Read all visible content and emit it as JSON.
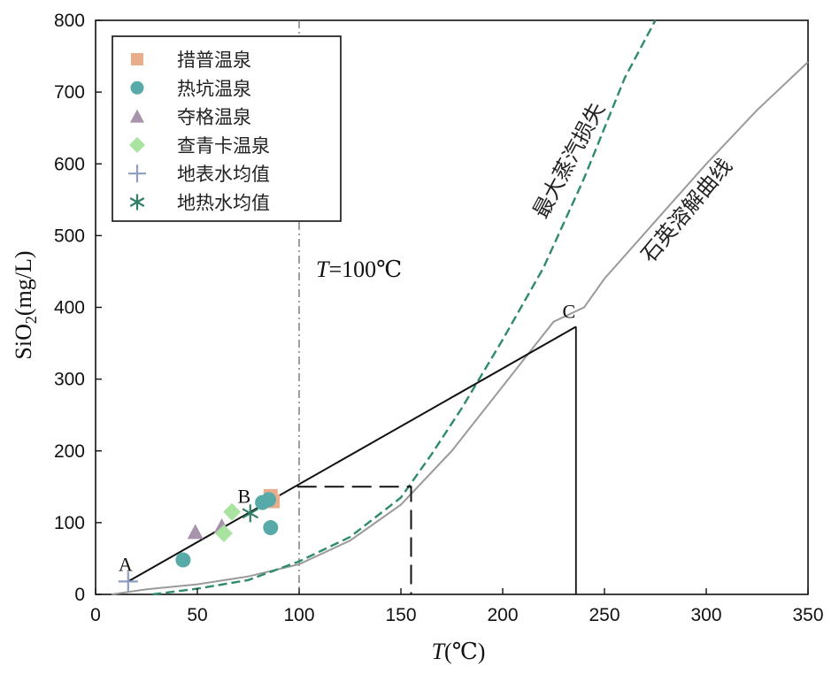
{
  "chart_data": {
    "type": "scatter",
    "xlabel_italic": "T",
    "xlabel_rest": "(℃)",
    "ylabel_main": "SiO",
    "ylabel_sub": "2",
    "ylabel_rest": "(mg/L)",
    "xlim": [
      0,
      350
    ],
    "ylim": [
      0,
      800
    ],
    "x_ticks": [
      0,
      50,
      100,
      150,
      200,
      250,
      300,
      350
    ],
    "y_ticks": [
      0,
      100,
      200,
      300,
      400,
      500,
      600,
      700,
      800
    ],
    "grid": false,
    "legend_position": "top-left",
    "series": [
      {
        "name": "措普温泉",
        "marker": "square",
        "color": "#E8AE8C",
        "points": [
          [
            86,
            137
          ],
          [
            87,
            130
          ]
        ]
      },
      {
        "name": "热坑温泉",
        "marker": "circle",
        "color": "#58AAA8",
        "points": [
          [
            43,
            48
          ],
          [
            82,
            128
          ],
          [
            85,
            132
          ],
          [
            86,
            93
          ]
        ]
      },
      {
        "name": "夺格温泉",
        "marker": "triangle",
        "color": "#A893AC",
        "points": [
          [
            49,
            87
          ],
          [
            62,
            95
          ]
        ]
      },
      {
        "name": "查青卡温泉",
        "marker": "diamond",
        "color": "#A8E4A0",
        "points": [
          [
            63,
            85
          ],
          [
            67,
            115
          ]
        ]
      },
      {
        "name": "地表水均值",
        "marker": "plus",
        "color": "#8E9CC0",
        "points": [
          [
            16,
            18
          ]
        ]
      },
      {
        "name": "地热水均值",
        "marker": "asterisk",
        "color": "#2E7D66",
        "points": [
          [
            76,
            113
          ]
        ]
      }
    ],
    "mixing_line": {
      "color": "#111111",
      "points": [
        [
          16,
          18
        ],
        [
          236,
          373
        ]
      ]
    },
    "c_drop_line": {
      "color": "#111111",
      "points": [
        [
          236,
          373
        ],
        [
          236,
          0
        ]
      ]
    },
    "dashed_box": {
      "color": "#111111",
      "points": [
        [
          99,
          150
        ],
        [
          155,
          150
        ],
        [
          155,
          0
        ]
      ]
    },
    "quartz_curve": {
      "label": "石英溶解曲线",
      "color": "#9A9A9A",
      "points": [
        [
          8,
          0
        ],
        [
          25,
          7
        ],
        [
          50,
          14
        ],
        [
          75,
          25
        ],
        [
          100,
          42
        ],
        [
          125,
          75
        ],
        [
          150,
          125
        ],
        [
          175,
          200
        ],
        [
          200,
          290
        ],
        [
          225,
          380
        ],
        [
          240,
          400
        ],
        [
          250,
          440
        ],
        [
          275,
          520
        ],
        [
          300,
          600
        ],
        [
          325,
          675
        ],
        [
          350,
          742
        ]
      ]
    },
    "steam_loss_curve": {
      "label": "最大蒸汽损失",
      "color": "#2E8B6E",
      "points": [
        [
          28,
          0
        ],
        [
          50,
          8
        ],
        [
          75,
          20
        ],
        [
          100,
          46
        ],
        [
          125,
          80
        ],
        [
          150,
          135
        ],
        [
          165,
          195
        ],
        [
          180,
          260
        ],
        [
          200,
          355
        ],
        [
          220,
          455
        ],
        [
          240,
          580
        ],
        [
          260,
          720
        ],
        [
          275,
          800
        ]
      ]
    },
    "t100_line": {
      "x": 100,
      "color": "#777777",
      "label_italic": "T",
      "label_rest": "=100℃"
    },
    "point_labels": [
      {
        "text": "A",
        "x": 16,
        "y": 18
      },
      {
        "text": "B",
        "x": 76,
        "y": 113
      },
      {
        "text": "C",
        "x": 236,
        "y": 373
      }
    ]
  }
}
